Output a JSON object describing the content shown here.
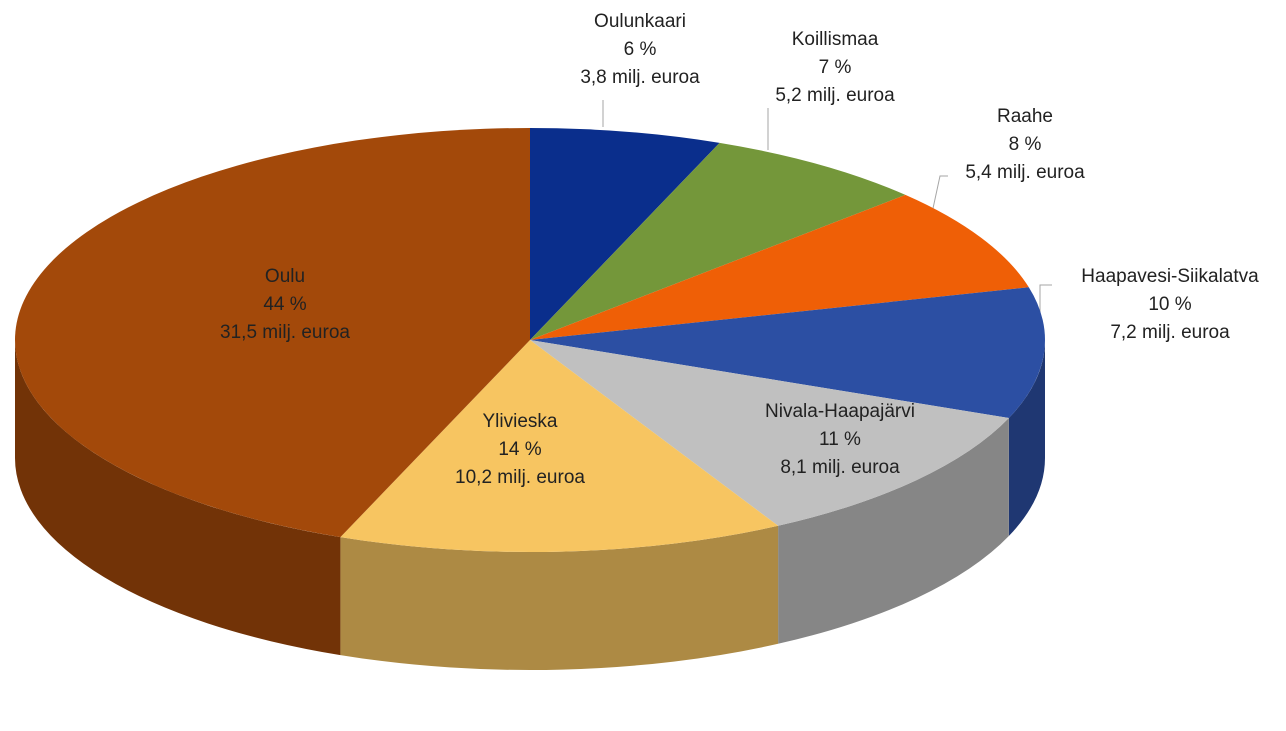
{
  "chart_data": {
    "type": "pie",
    "categories": [
      "Oulunkaari",
      "Koillismaa",
      "Raahe",
      "Haapavesi-Siikalatva",
      "Nivala-Haapajärvi",
      "Ylivieska",
      "Oulu"
    ],
    "values": [
      6,
      7,
      8,
      10,
      11,
      14,
      44
    ],
    "value_labels": [
      "6 %",
      "7 %",
      "8 %",
      "10 %",
      "11 %",
      "14 %",
      "44 %"
    ],
    "amount_labels": [
      "3,8 milj. euroa",
      "5,2 milj. euroa",
      "5,4 milj. euroa",
      "7,2 milj. euroa",
      "8,1 milj. euroa",
      "10,2 milj. euroa",
      "31,5 milj. euroa"
    ],
    "colors": [
      "#0a2e8c",
      "#74973a",
      "#ef5f06",
      "#2c4fa3",
      "#c0c0c0",
      "#f7c561",
      "#a3490a"
    ]
  }
}
